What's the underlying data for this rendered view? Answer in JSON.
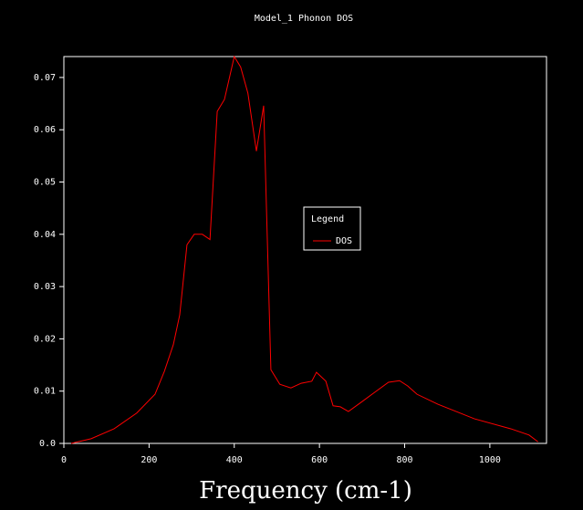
{
  "chart_data": {
    "type": "line",
    "title": "Model_1 Phonon DOS",
    "x_label": "Frequency (cm-1)",
    "x": [
      17,
      64,
      118,
      171,
      214,
      236,
      257,
      272,
      289,
      306,
      325,
      343,
      360,
      377,
      400,
      415,
      432,
      452,
      469,
      486,
      507,
      533,
      557,
      582,
      593,
      615,
      632,
      649,
      668,
      700,
      730,
      762,
      788,
      807,
      829,
      878,
      964,
      1049,
      1092,
      1113
    ],
    "series": [
      {
        "name": "DOS",
        "color": "#ff0000",
        "values": [
          0,
          0.0009,
          0.0028,
          0.0058,
          0.0094,
          0.0138,
          0.0189,
          0.0246,
          0.038,
          0.04,
          0.04,
          0.039,
          0.0635,
          0.0658,
          0.074,
          0.072,
          0.067,
          0.0559,
          0.0646,
          0.0141,
          0.0113,
          0.0106,
          0.0115,
          0.0119,
          0.0136,
          0.0119,
          0.0072,
          0.007,
          0.0061,
          0.008,
          0.0098,
          0.0117,
          0.012,
          0.011,
          0.0094,
          0.0075,
          0.0047,
          0.0028,
          0.0016,
          0.0003
        ]
      }
    ],
    "xlim": [
      0,
      1133
    ],
    "ylim": [
      0,
      0.074
    ],
    "xticks": [
      0,
      200,
      400,
      600,
      800,
      1000
    ],
    "yticks": [
      {
        "value": 0,
        "label": "0.0"
      },
      0.01,
      0.02,
      0.03,
      0.04,
      0.05,
      0.06,
      0.07
    ],
    "legend_title": "Legend",
    "legend_position": "center"
  }
}
